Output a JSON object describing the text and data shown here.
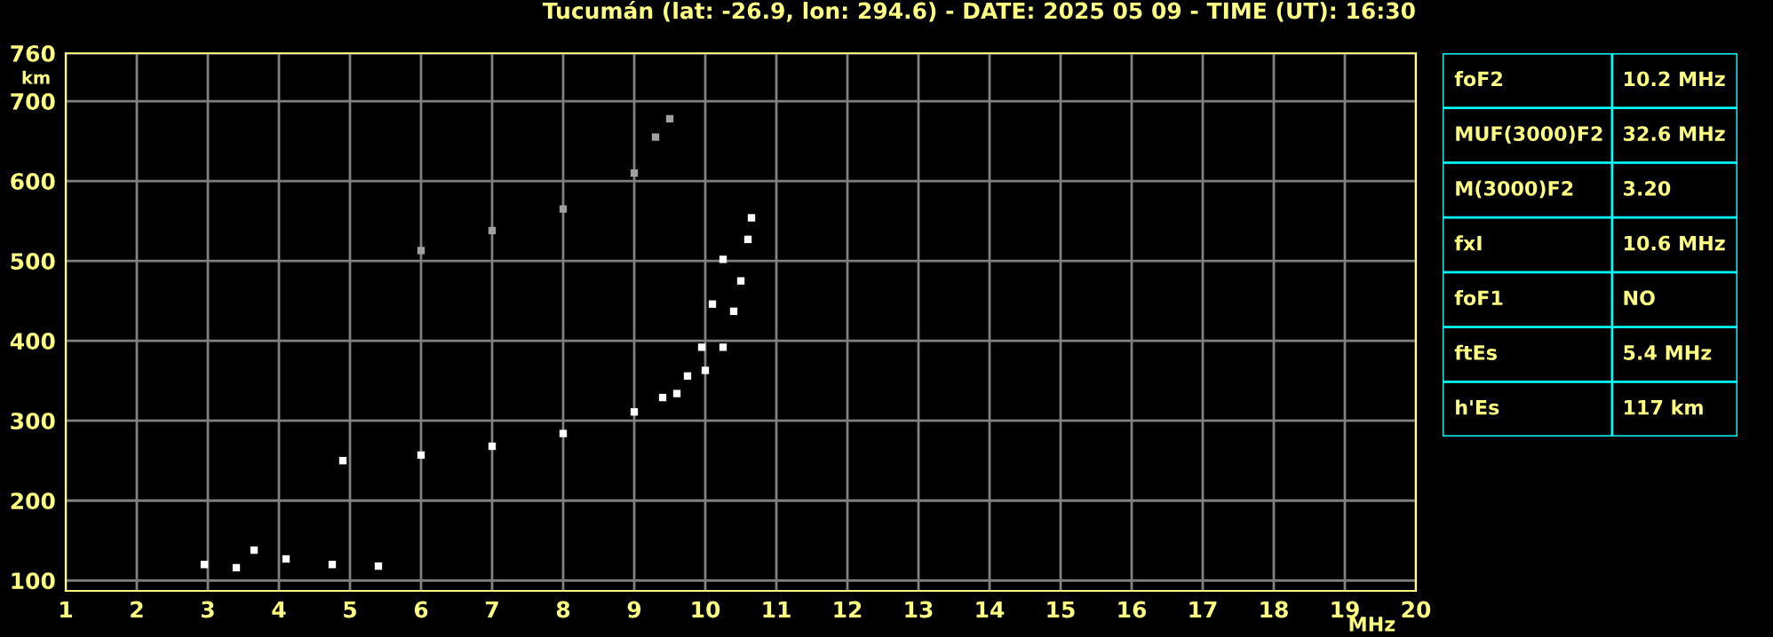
{
  "chart_data": [
    {
      "type": "scatter",
      "title": "Tucumán (lat: -26.9, lon: 294.6) - DATE: 2025 05 09 - TIME (UT): 16:30",
      "xlabel": "MHz",
      "ylabel": "km",
      "xlim": [
        1,
        20
      ],
      "ylim": [
        87,
        760
      ],
      "xticks": [
        1,
        2,
        3,
        4,
        5,
        6,
        7,
        8,
        9,
        10,
        11,
        12,
        13,
        14,
        15,
        16,
        17,
        18,
        19,
        20
      ],
      "yticks": [
        100,
        200,
        300,
        400,
        500,
        600,
        700,
        760
      ],
      "grid": true,
      "marker": "square",
      "series": [
        {
          "color": "#ffffff",
          "x": [
            4.9,
            6.0,
            7.0,
            8.0,
            9.0,
            9.4,
            9.75,
            9.95,
            10.1,
            10.25
          ],
          "values": [
            250,
            257,
            268,
            284,
            311,
            329,
            356,
            392,
            446,
            502
          ]
        },
        {
          "color": "#ffffff",
          "x": [
            9.6,
            10.0,
            10.25,
            10.4,
            10.5,
            10.6,
            10.65
          ],
          "values": [
            334,
            363,
            392,
            437,
            475,
            527,
            554
          ]
        },
        {
          "color": "#a0a0a0",
          "x": [
            6.0,
            7.0,
            8.0,
            9.0,
            9.3,
            9.5
          ],
          "values": [
            513,
            538,
            565,
            610,
            655,
            678
          ]
        },
        {
          "color": "#ffffff",
          "x": [
            2.95,
            3.4,
            3.65,
            4.1,
            4.75,
            5.4
          ],
          "values": [
            120,
            116,
            138,
            127,
            120,
            118
          ]
        }
      ]
    },
    {
      "type": "other",
      "annotations": [
        "foF2",
        "10.2 MHz",
        "MUF(3000)F2",
        "32.6 MHz",
        "M(3000)F2",
        "3.20",
        "fxI",
        "10.6 MHz",
        "foF1",
        "NO",
        "ftEs",
        "5.4 MHz",
        "h'Es",
        "117 km"
      ]
    }
  ]
}
